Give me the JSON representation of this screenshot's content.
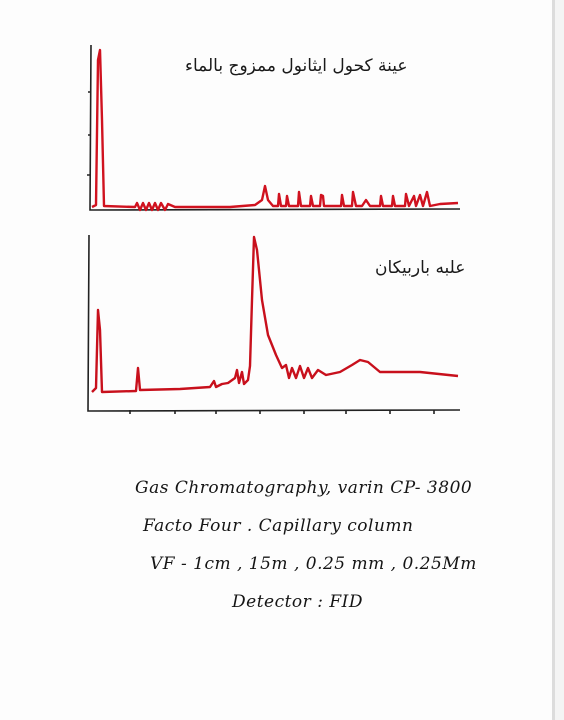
{
  "panels": [
    {
      "title": "عينة كحول ايثانول ممزوج بالماء"
    },
    {
      "title": "علبه باربيكان"
    }
  ],
  "notes": [
    "Gas Chromatography, varin CP- 3800",
    "Facto Four . Capillary column",
    "VF - 1cm , 15m , 0.25 mm , 0.25Mm",
    "Detector : FID"
  ]
}
